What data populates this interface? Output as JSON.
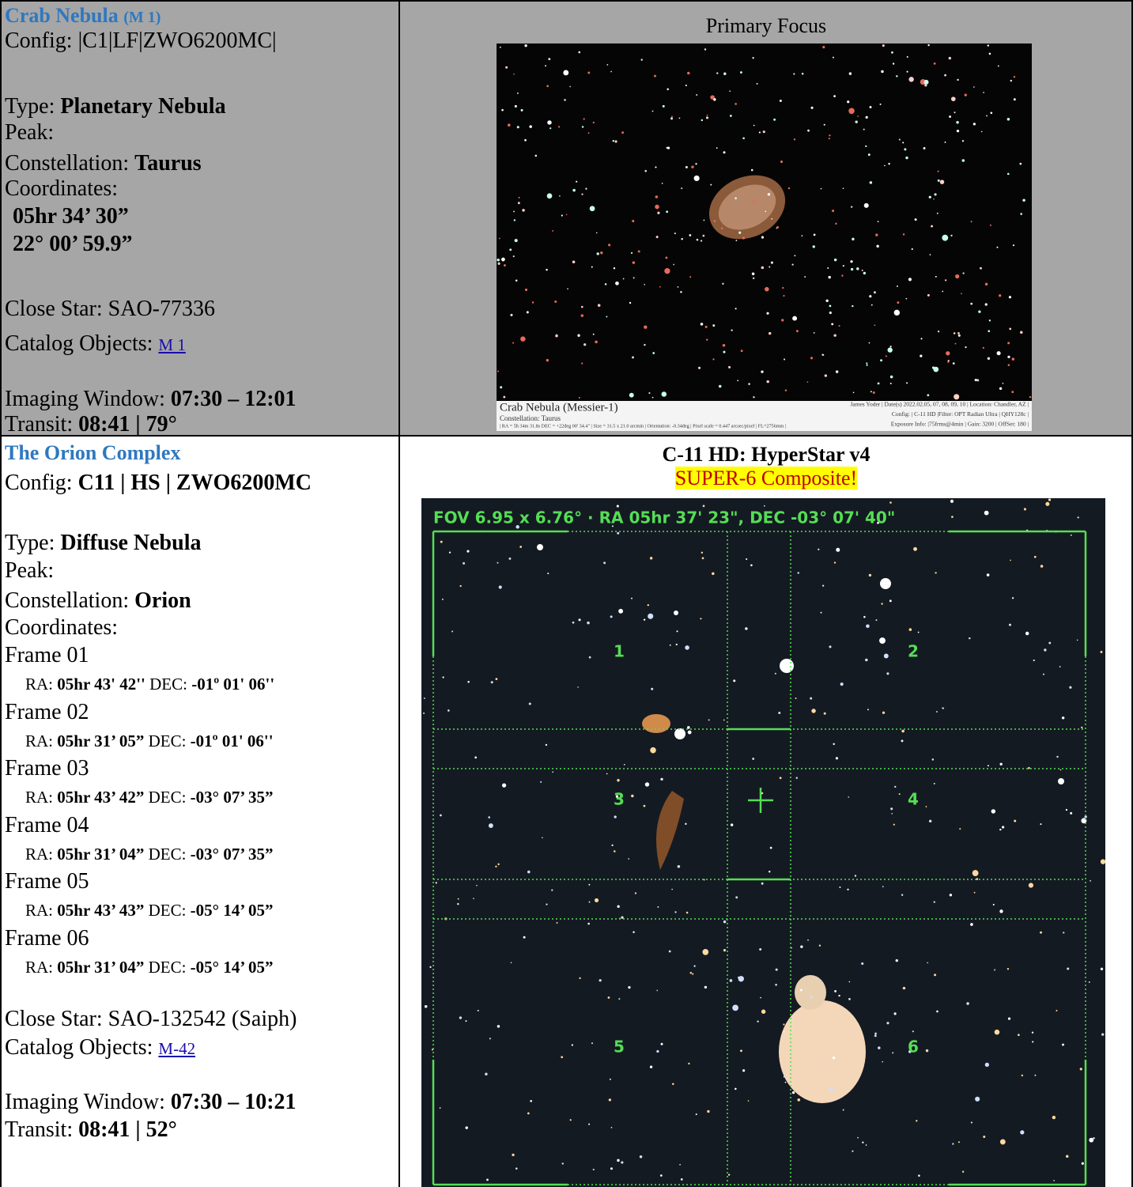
{
  "rows": [
    {
      "title": "Crab Nebula",
      "title_suffix": "(M 1)",
      "config_label": "Config:",
      "config": "|C1|LF|ZWO6200MC|",
      "type_label": "Type:",
      "type": "Planetary Nebula",
      "peak_label": "Peak:",
      "constellation_label": "Constellation:",
      "constellation": "Taurus",
      "coordinates_label": "Coordinates:",
      "coords": [
        "05hr 34’ 30”",
        "22° 00’ 59.9”"
      ],
      "close_star_label": "Close Star:",
      "close_star": "SAO-77336",
      "catalog_label": "Catalog Objects:",
      "catalog": "M 1",
      "window_label": "Imaging Window:",
      "window": "07:30 – 12:01",
      "transit_label": "Transit:",
      "transit": "08:41 | 79°",
      "image_heading": "Primary Focus",
      "image_caption": {
        "title": "Crab Nebula (Messier-1)",
        "constellation": "Constellation: Taurus",
        "details": "| RA = 5h 34m 31.8s  DEC = +22deg 00' 34.4\" | Size = 31.5 x 21.0 arcmin | Orientation: -0.34deg | Pixel scale = 0.447 arcsec/pixel | FL=2756mm |",
        "credits": [
          "James Yoder | Date(s) 2022.02.05, 07, 08, 09, 10 | Location: Chandler, AZ |",
          "Config: | C-11 HD |Filter: OPT Radian Ultra | QHY128c |",
          "Exposure Info: |75frms@4min | Gain: 3200 | OffSet: 180 |"
        ]
      }
    },
    {
      "title": "The Orion Complex",
      "config_label": "Config:",
      "config": "C11 | HS | ZWO6200MC",
      "type_label": "Type:",
      "type": "Diffuse Nebula",
      "peak_label": "Peak:",
      "constellation_label": "Constellation:",
      "constellation": "Orion",
      "coordinates_label": "Coordinates:",
      "frames": [
        {
          "label": "Frame 01",
          "ra_label": "RA:",
          "ra": "05hr 43' 42''",
          "dec_label": "DEC:",
          "dec": "-01º 01' 06''"
        },
        {
          "label": "Frame 02",
          "ra_label": "RA:",
          "ra": "05hr 31’ 05”",
          "dec_label": "DEC:",
          "dec": "-01º 01' 06''"
        },
        {
          "label": "Frame 03",
          "ra_label": "RA:",
          "ra": "05hr 43’ 42”",
          "dec_label": "DEC:",
          "dec": "-03° 07’ 35”"
        },
        {
          "label": "Frame 04",
          "ra_label": "RA:",
          "ra": "05hr 31’ 04”",
          "dec_label": "DEC:",
          "dec": "-03° 07’ 35”"
        },
        {
          "label": "Frame 05",
          "ra_label": "RA:",
          "ra": "05hr 43’ 43”",
          "dec_label": "DEC:",
          "dec": "-05° 14’ 05”"
        },
        {
          "label": "Frame 06",
          "ra_label": "RA:",
          "ra": "05hr 31’ 04”",
          "dec_label": "DEC:",
          "dec": "-05° 14’ 05”"
        }
      ],
      "close_star_label": "Close Star:",
      "close_star": "SAO-132542 (Saiph)",
      "catalog_label": "Catalog Objects:",
      "catalog": "M-42",
      "window_label": "Imaging Window:",
      "window": "07:30 – 10:21",
      "transit_label": "Transit:",
      "transit": "08:41 | 52°",
      "image_heading": "C-11 HD: HyperStar v4",
      "image_subheading": "SUPER-6 Composite!",
      "image_overlay": {
        "fov": "FOV 6.95 x 6.76° · RA 05hr 37' 23\", DEC -03° 07' 40\"",
        "frame_numbers": [
          "1",
          "2",
          "3",
          "4",
          "5",
          "6"
        ]
      }
    }
  ]
}
